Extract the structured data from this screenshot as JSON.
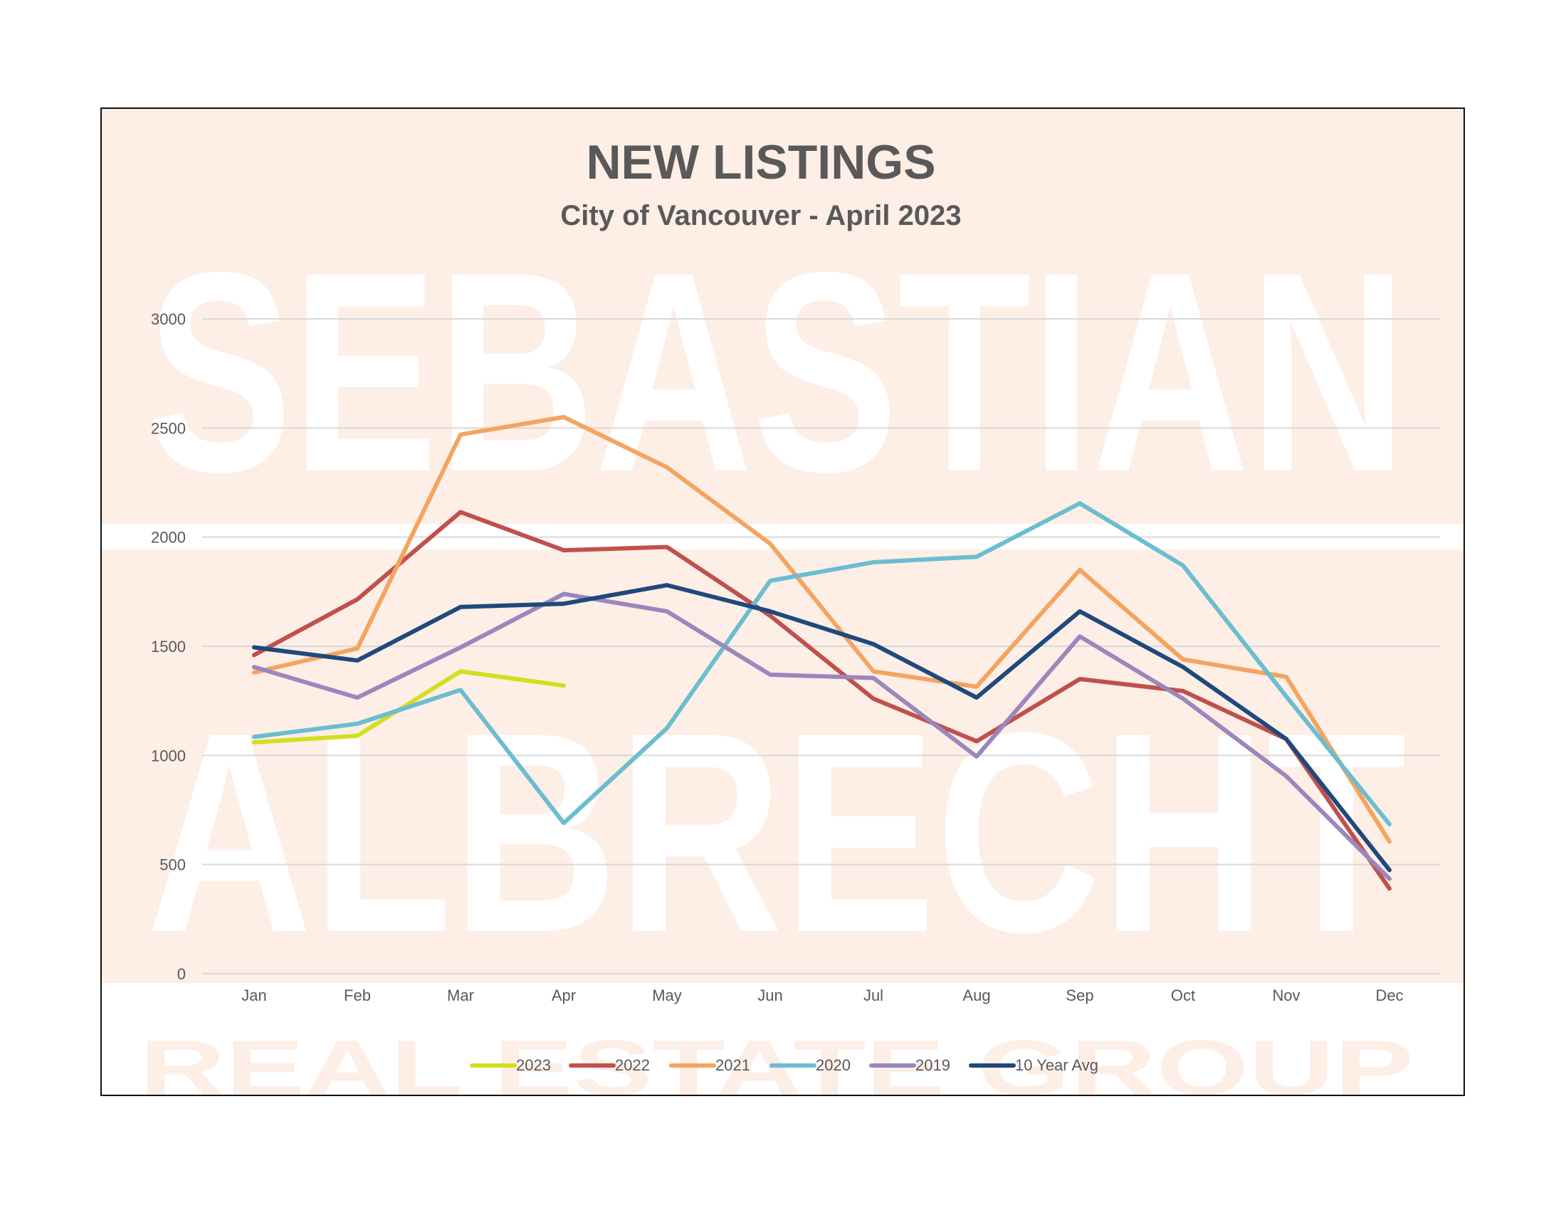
{
  "watermark": {
    "line1": "SEBASTIAN",
    "line2": "ALBRECHT",
    "line3": "REAL ESTATE GROUP"
  },
  "chart_data": {
    "type": "line",
    "title": "NEW LISTINGS",
    "subtitle": "City of Vancouver - April 2023",
    "xlabel": "",
    "ylabel": "",
    "categories": [
      "Jan",
      "Feb",
      "Mar",
      "Apr",
      "May",
      "Jun",
      "Jul",
      "Aug",
      "Sep",
      "Oct",
      "Nov",
      "Dec"
    ],
    "ylim": [
      0,
      3000
    ],
    "yticks": [
      0,
      500,
      1000,
      1500,
      2000,
      2500,
      3000
    ],
    "grid": true,
    "legend_position": "bottom",
    "series": [
      {
        "name": "2023",
        "color": "#d4de1f",
        "values": [
          1060,
          1090,
          1385,
          1320,
          null,
          null,
          null,
          null,
          null,
          null,
          null,
          null
        ]
      },
      {
        "name": "2022",
        "color": "#c0504d",
        "values": [
          1460,
          1715,
          2115,
          1940,
          1955,
          1640,
          1260,
          1065,
          1350,
          1295,
          1075,
          390
        ]
      },
      {
        "name": "2021",
        "color": "#f4a460",
        "values": [
          1380,
          1490,
          2470,
          2550,
          2320,
          1970,
          1385,
          1315,
          1850,
          1440,
          1360,
          605
        ]
      },
      {
        "name": "2020",
        "color": "#6bbdd0",
        "values": [
          1085,
          1145,
          1300,
          690,
          1125,
          1800,
          1885,
          1910,
          2155,
          1870,
          1270,
          685
        ]
      },
      {
        "name": "2019",
        "color": "#9b86bd",
        "values": [
          1405,
          1265,
          1495,
          1740,
          1660,
          1370,
          1355,
          995,
          1545,
          1260,
          905,
          435
        ]
      },
      {
        "name": "10 Year Avg",
        "color": "#1f497d",
        "values": [
          1495,
          1435,
          1680,
          1695,
          1780,
          1660,
          1510,
          1265,
          1660,
          1405,
          1075,
          475
        ]
      }
    ]
  }
}
